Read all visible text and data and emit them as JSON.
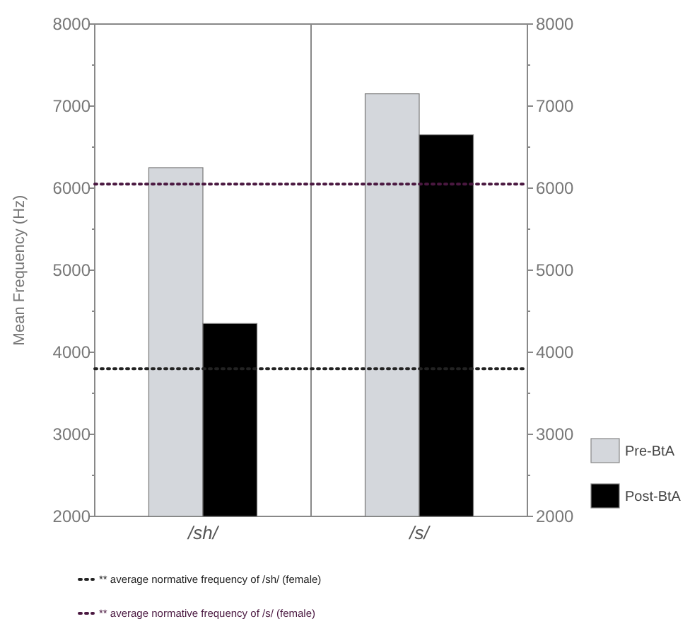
{
  "chart_data": {
    "type": "bar",
    "ylabel": "Mean Frequency (Hz)",
    "categories": [
      "/sh/",
      "/s/"
    ],
    "series": [
      {
        "name": "Pre-BtA",
        "color": "#d4d7dc",
        "values": [
          6250,
          7150
        ]
      },
      {
        "name": "Post-BtA",
        "color": "#000000",
        "values": [
          4350,
          6650
        ]
      }
    ],
    "ylim": [
      2000,
      8000
    ],
    "yticks": [
      2000,
      {
        "value": 2500,
        "label": null
      },
      3000,
      {
        "value": 3500,
        "label": null
      },
      4000,
      {
        "value": 4500,
        "label": null
      },
      5000,
      {
        "value": 5500,
        "label": null
      },
      6000,
      {
        "value": 6500,
        "label": null
      },
      7000,
      {
        "value": 7500,
        "label": null
      },
      8000
    ],
    "y2lim": [
      2000,
      8000
    ],
    "y2ticks": [
      2000,
      {
        "value": 2500,
        "label": null
      },
      3000,
      {
        "value": 3500,
        "label": null
      },
      4000,
      {
        "value": 4500,
        "label": null
      },
      5000,
      {
        "value": 5500,
        "label": null
      },
      6000,
      {
        "value": 6500,
        "label": null
      },
      7000,
      {
        "value": 7500,
        "label": null
      },
      8000
    ],
    "ref_lines": [
      {
        "axis": "y",
        "value": 3800,
        "label": "** average normative frequency of /sh/ (female)",
        "color": "#222222",
        "line_style": "dotted"
      },
      {
        "axis": "y",
        "value": 6050,
        "label": "** average normative frequency of /s/ (female)",
        "color": "#4a1840",
        "line_style": "dotted"
      }
    ],
    "legend": "bottom right",
    "grid": false
  }
}
